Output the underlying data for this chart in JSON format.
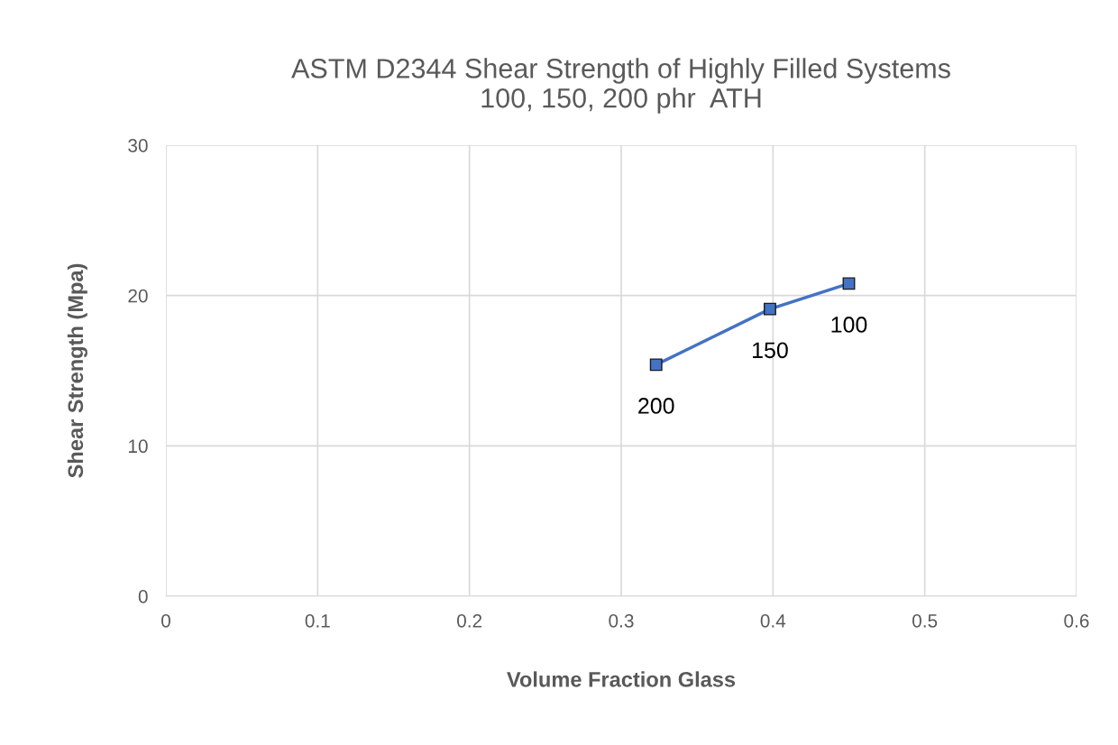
{
  "chart_data": {
    "type": "line",
    "title": "ASTM D2344 Shear Strength of Highly Filled Systems\n100, 150, 200 phr  ATH",
    "xlabel": "Volume Fraction Glass",
    "ylabel": "Shear Strength (Mpa)",
    "x": [
      0.323,
      0.398,
      0.45
    ],
    "series": [
      {
        "color": "#4472c4",
        "values": [
          15.4,
          19.1,
          20.8
        ]
      }
    ],
    "annotations": [
      {
        "text": "200",
        "x": 0.323,
        "y": 15.4
      },
      {
        "text": "150",
        "x": 0.398,
        "y": 19.1
      },
      {
        "text": "100",
        "x": 0.45,
        "y": 20.8
      }
    ],
    "xlim": [
      0,
      0.6
    ],
    "xticks": [
      0,
      0.1,
      0.2,
      0.3,
      0.4,
      0.5,
      0.6
    ],
    "ylim": [
      0,
      30
    ],
    "yticks": [
      0,
      10,
      20,
      30
    ],
    "grid": true,
    "marker": "square",
    "line_style": "solid"
  }
}
